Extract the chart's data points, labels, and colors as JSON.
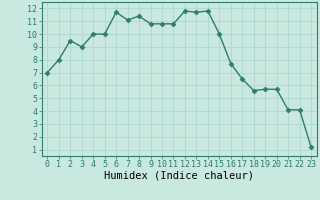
{
  "x": [
    0,
    1,
    2,
    3,
    4,
    5,
    6,
    7,
    8,
    9,
    10,
    11,
    12,
    13,
    14,
    15,
    16,
    17,
    18,
    19,
    20,
    21,
    22,
    23
  ],
  "y": [
    7,
    8,
    9.5,
    9,
    10,
    10,
    11.7,
    11.1,
    11.4,
    10.8,
    10.8,
    10.8,
    11.8,
    11.7,
    11.8,
    10,
    7.7,
    6.5,
    5.6,
    5.7,
    5.7,
    4.1,
    4.1,
    1.2
  ],
  "xlabel": "Humidex (Indice chaleur)",
  "ylim": [
    0.5,
    12.5
  ],
  "xlim": [
    -0.5,
    23.5
  ],
  "yticks": [
    1,
    2,
    3,
    4,
    5,
    6,
    7,
    8,
    9,
    10,
    11,
    12
  ],
  "xticks": [
    0,
    1,
    2,
    3,
    4,
    5,
    6,
    7,
    8,
    9,
    10,
    11,
    12,
    13,
    14,
    15,
    16,
    17,
    18,
    19,
    20,
    21,
    22,
    23
  ],
  "line_color": "#2e7d6e",
  "marker": "D",
  "marker_size": 2.5,
  "bg_color": "#c8e8e0",
  "grid_color": "#b0d8d0",
  "spine_color": "#2e7d6e",
  "tick_fontsize": 6,
  "xlabel_fontsize": 7.5
}
